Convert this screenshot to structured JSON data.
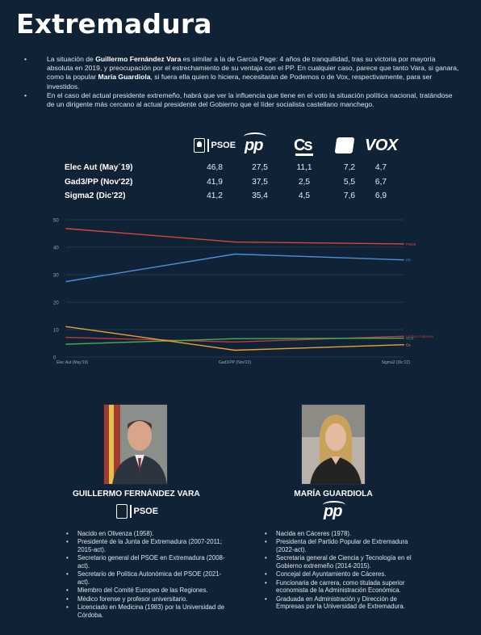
{
  "page": {
    "title": "Extremadura"
  },
  "intro": {
    "p1_pre": "La situación de ",
    "p1_name1": "Guillermo Fernández Vara",
    "p1_mid": " es similar a la de García Page: 4 años de tranquilidad, tras su victoria por mayoría absoluta en 2019, y preocupación por el estrechamiento de su ventaja con el PP. En cualquier caso, parece que tanto Vara, si ganara, como la popular ",
    "p1_name2": "María Guardiola",
    "p1_post": ", si fuera ella quien lo hiciera, necesitarán de Podemos o de Vox, respectivamente, para ser investidos.",
    "p2": "En el caso del actual presidente extremeño, habrá que ver la influencia que tiene en el voto la situación política nacional, tratándose de un dirigente más cercano al actual presidente del Gobierno que el líder socialista castellano manchego."
  },
  "party_logos": {
    "psoe": "PSOE",
    "pp": "pp",
    "cs": "Cs",
    "vox": "VOX"
  },
  "table": {
    "rows": [
      {
        "label": "Elec Aut (May´19)",
        "values": [
          "46,8",
          "27,5",
          "11,1",
          "7,2",
          "4,7"
        ]
      },
      {
        "label": "Gad3/PP (Nov'22)",
        "values": [
          "41,9",
          "37,5",
          "2,5",
          "5,5",
          "6,7"
        ]
      },
      {
        "label": "Sigma2 (Dic'22)",
        "values": [
          "41,2",
          "35,4",
          "4,5",
          "7,6",
          "6,9"
        ]
      }
    ]
  },
  "chart_data": {
    "type": "line",
    "categories": [
      "Elec Aut (May'19)",
      "Gad3/PP (Nov'22)",
      "Sigma2 (Dic'22)"
    ],
    "ylim": [
      0,
      50
    ],
    "yticks": [
      0,
      10,
      20,
      30,
      40,
      50
    ],
    "grid": true,
    "series": [
      {
        "name": "PSOE",
        "color": "#d9463c",
        "values": [
          46.8,
          41.9,
          41.2
        ]
      },
      {
        "name": "PP",
        "color": "#4a90d9",
        "values": [
          27.5,
          37.5,
          35.4
        ]
      },
      {
        "name": "Unidas Podemos",
        "color": "#c2393f",
        "values": [
          7.2,
          5.5,
          7.6
        ]
      },
      {
        "name": "VOX",
        "color": "#4caf50",
        "values": [
          4.7,
          6.7,
          6.9
        ]
      },
      {
        "name": "Cs",
        "color": "#f0a030",
        "values": [
          11.1,
          2.5,
          4.5
        ]
      }
    ]
  },
  "bios": {
    "vara": {
      "name": "GUILLERMO FERNÁNDEZ VARA",
      "party": "PSOE",
      "items": [
        "Nacido en Olivenza (1958).",
        "Presidente de la Junta de Extremadura (2007-2011; 2015-act).",
        "Secretario general del PSOE en Extremadura (2008-act).",
        "Secretario de Política Autonómica del PSOE (2021-act).",
        "Miembro del Comité Europeo de las Regiones.",
        "Médico forense y profesor universitario.",
        "Licenciado en Medicina (1983) por la Universidad de Córdoba."
      ]
    },
    "guardiola": {
      "name": "MARÍA GUARDIOLA",
      "party": "pp",
      "items": [
        "Nacida en Cáceres (1978).",
        "Presidenta del Partido Popular de Extremadura (2022-act).",
        "Secretaria general de Ciencia y Tecnología en el Gobierno extremeño (2014-2015).",
        "Concejal del Ayuntamiento de Cáceres.",
        "Funcionaria de carrera, como titulada superior economista de la Administración Económica.",
        "Graduada en Administración y Dirección de Empresas por la Universidad de Extremadura."
      ]
    }
  }
}
